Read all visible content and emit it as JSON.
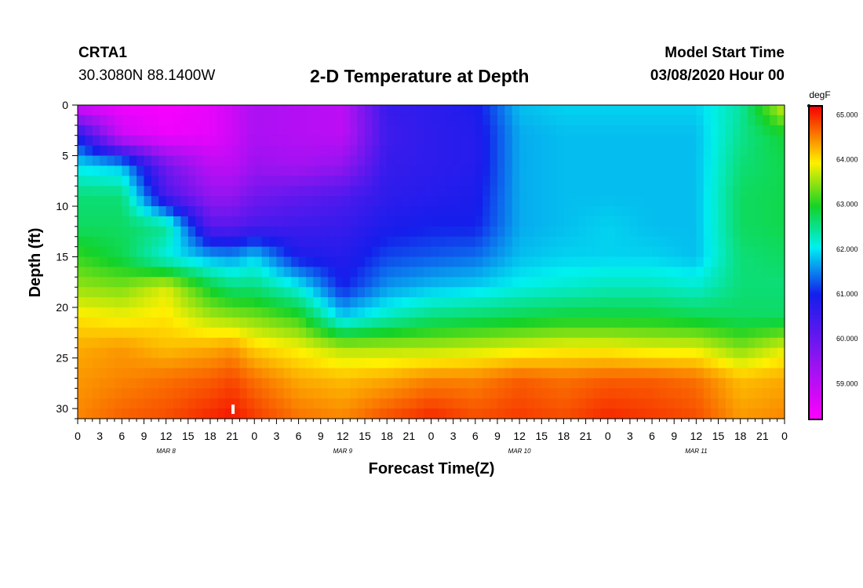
{
  "header": {
    "station": "CRTA1",
    "coords": "30.3080N 88.1400W",
    "title": "2-D Temperature at Depth",
    "start_label": "Model Start Time",
    "start_value": "03/08/2020 Hour 00"
  },
  "chart_data": {
    "type": "heatmap",
    "title": "2-D Temperature at Depth",
    "xlabel": "Forecast Time(Z)",
    "ylabel": "Depth (ft)",
    "x_tick_labels": [
      "0",
      "3",
      "6",
      "9",
      "12",
      "15",
      "18",
      "21",
      "0",
      "3",
      "6",
      "9",
      "12",
      "15",
      "18",
      "21",
      "0",
      "3",
      "6",
      "9",
      "12",
      "15",
      "18",
      "21",
      "0",
      "3",
      "6",
      "9",
      "12",
      "15",
      "18",
      "21",
      "0"
    ],
    "x_hours": [
      0,
      3,
      6,
      9,
      12,
      15,
      18,
      21,
      24,
      27,
      30,
      33,
      36,
      39,
      42,
      45,
      48,
      51,
      54,
      57,
      60,
      63,
      66,
      69,
      72,
      75,
      78,
      81,
      84,
      87,
      90,
      93,
      96
    ],
    "day_labels": [
      {
        "label": "MAR 8",
        "hour": 12
      },
      {
        "label": "MAR 9",
        "hour": 36
      },
      {
        "label": "MAR 10",
        "hour": 60
      },
      {
        "label": "MAR 11",
        "hour": 84
      }
    ],
    "y_ticks": [
      0,
      5,
      10,
      15,
      20,
      25,
      30
    ],
    "y_range": [
      0,
      31
    ],
    "x_range": [
      0,
      96
    ],
    "colorbar": {
      "unit": "degF",
      "min": 58.2,
      "max": 65.2,
      "tick_values": [
        59,
        60,
        61,
        62,
        63,
        64,
        65
      ],
      "tick_labels": [
        "59.000",
        "60.000",
        "61.000",
        "62.000",
        "63.000",
        "64.000",
        "65.000"
      ]
    },
    "grid_depths_ft": [
      0,
      3,
      6,
      9,
      12,
      15,
      18,
      21,
      24,
      27,
      31
    ],
    "grid_hours": [
      0,
      6,
      12,
      18,
      21,
      24,
      30,
      36,
      42,
      48,
      54,
      60,
      66,
      72,
      78,
      84,
      90,
      96
    ],
    "values_degF": [
      [
        58.6,
        58.4,
        58.3,
        58.5,
        58.8,
        59.2,
        59.1,
        59.0,
        60.6,
        60.7,
        60.9,
        61.8,
        61.9,
        61.9,
        61.9,
        61.9,
        62.4,
        63.8
      ],
      [
        60.9,
        58.8,
        58.4,
        58.5,
        58.8,
        59.2,
        59.1,
        59.0,
        60.5,
        60.7,
        60.8,
        61.7,
        61.8,
        61.8,
        61.8,
        61.8,
        62.5,
        62.9
      ],
      [
        62.0,
        61.8,
        59.9,
        59.0,
        59.0,
        59.4,
        59.3,
        59.5,
        60.6,
        60.7,
        60.8,
        61.7,
        61.8,
        61.8,
        61.8,
        61.8,
        62.6,
        62.8
      ],
      [
        62.6,
        62.6,
        60.4,
        59.5,
        59.5,
        59.9,
        60.1,
        60.3,
        60.7,
        60.8,
        60.9,
        61.7,
        61.8,
        61.8,
        61.8,
        61.8,
        62.7,
        62.8
      ],
      [
        62.7,
        62.7,
        62.5,
        60.2,
        60.2,
        60.4,
        60.5,
        60.6,
        60.9,
        61.0,
        61.0,
        61.7,
        61.8,
        61.9,
        61.8,
        61.8,
        62.7,
        62.8
      ],
      [
        63.1,
        62.8,
        62.1,
        61.7,
        61.6,
        61.9,
        60.9,
        60.8,
        61.2,
        61.3,
        61.4,
        61.8,
        61.9,
        61.9,
        61.9,
        61.8,
        62.6,
        62.7
      ],
      [
        63.5,
        63.4,
        63.8,
        62.9,
        62.6,
        62.6,
        62.1,
        61.0,
        61.6,
        61.8,
        61.9,
        62.1,
        62.2,
        62.3,
        62.3,
        62.2,
        62.6,
        62.6
      ],
      [
        64.0,
        63.9,
        64.0,
        63.6,
        63.5,
        63.4,
        63.1,
        61.9,
        62.3,
        62.6,
        62.7,
        62.8,
        62.9,
        62.9,
        62.9,
        62.8,
        62.7,
        62.7
      ],
      [
        64.3,
        64.4,
        64.2,
        64.3,
        64.4,
        64.1,
        63.9,
        63.6,
        63.6,
        63.6,
        63.7,
        63.8,
        63.9,
        63.9,
        63.8,
        63.8,
        63.4,
        63.8
      ],
      [
        64.4,
        64.5,
        64.6,
        64.7,
        64.8,
        64.6,
        64.3,
        64.2,
        64.3,
        64.5,
        64.5,
        64.7,
        64.6,
        64.7,
        64.7,
        64.6,
        64.2,
        64.3
      ],
      [
        64.5,
        64.7,
        64.8,
        65.0,
        65.1,
        64.9,
        64.6,
        64.5,
        64.8,
        65.0,
        64.8,
        64.9,
        64.8,
        65.0,
        64.9,
        64.8,
        64.4,
        64.5
      ]
    ]
  }
}
